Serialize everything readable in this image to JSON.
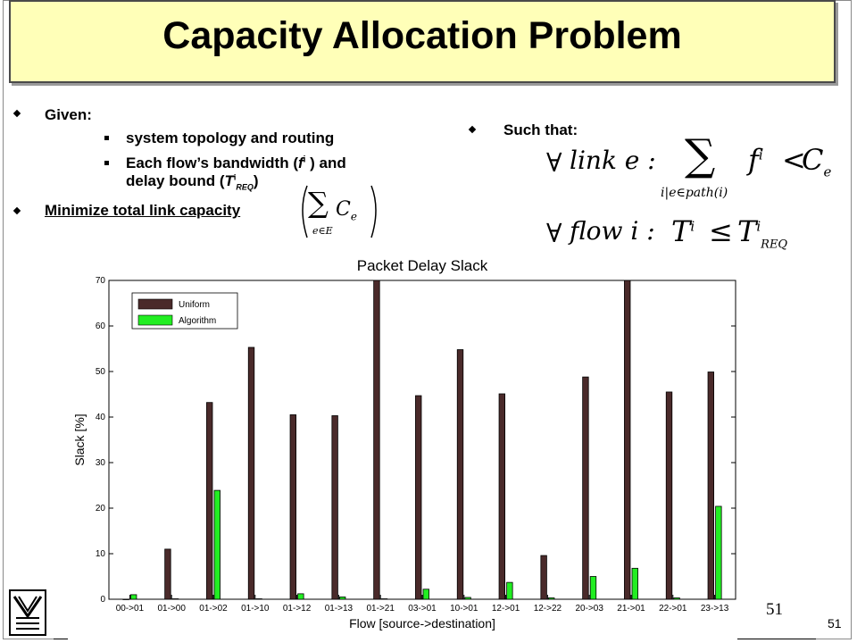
{
  "slide": {
    "title": "Capacity Allocation Problem",
    "page_number": "51",
    "page_number_small": "51",
    "given_label": "Given:",
    "given_item1": "system topology and routing",
    "given_item2_line1_pre": "Each flow’s bandwidth (",
    "given_item2_f": "f",
    "given_item2_sup": "i",
    "given_item2_line1_post": " ) and",
    "given_item2_line2_pre": "delay bound (",
    "given_item2_T": "T",
    "given_item2_Tsup": "i",
    "given_item2_Tsub": "REQ",
    "given_item2_line2_post": ")",
    "minimize_label": "Minimize total link capacity",
    "such_that_label": "Such that:",
    "min_formula": {
      "sum": "∑",
      "C": "C",
      "C_sub": "e",
      "under": "e∈E"
    },
    "constraint1": {
      "forall": "∀",
      "text": "link e :",
      "sum": "∑",
      "under": "i|e∈path(i)",
      "f": "f",
      "f_sup": "i",
      "lt": "<",
      "C": "C",
      "C_sub": "e"
    },
    "constraint2": {
      "forall": "∀",
      "text": "flow i :",
      "T": "T",
      "T_sup": "i",
      "le": "≤",
      "T2": "T",
      "T2_sup": "i",
      "T2_sub": "REQ"
    }
  },
  "chart_data": {
    "type": "bar",
    "title": "Packet Delay Slack",
    "xlabel": "Flow [source->destination]",
    "ylabel": "Slack [%]",
    "ylim": [
      0,
      70
    ],
    "yticks": [
      0,
      10,
      20,
      30,
      40,
      50,
      60,
      70
    ],
    "grid": false,
    "legend_position": "top-left",
    "categories": [
      "00->01",
      "01->00",
      "01->02",
      "01->10",
      "01->12",
      "01->13",
      "01->21",
      "03->01",
      "10->01",
      "12->01",
      "12->22",
      "20->03",
      "21->01",
      "22->01",
      "23->13"
    ],
    "series": [
      {
        "name": "Uniform",
        "color": "#4a2a2a",
        "values": [
          0,
          11,
          43.2,
          55.3,
          40.5,
          40.3,
          70,
          44.7,
          54.8,
          45.1,
          9.6,
          48.8,
          70,
          45.5,
          49.9
        ]
      },
      {
        "name": "Algorithm",
        "color": "#22ee22",
        "values": [
          1,
          0.1,
          23.9,
          0.1,
          1.2,
          0.5,
          0.1,
          2.2,
          0.4,
          3.7,
          0.3,
          5.0,
          6.8,
          0.3,
          20.4
        ]
      }
    ]
  }
}
